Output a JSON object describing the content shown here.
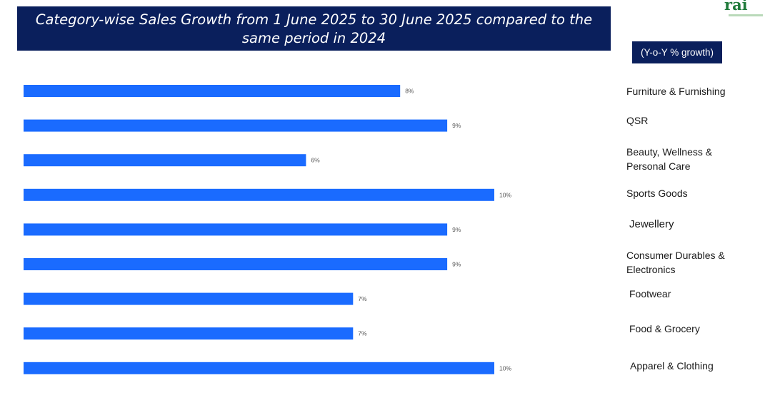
{
  "title": "Category-wise Sales Growth from 1 June 2025 to 30 June 2025 compared to the same period in 2024",
  "unit_label": "(Y-o-Y % growth)",
  "logo_text": "rai",
  "colors": {
    "bar": "#1a6bff",
    "title_bg": "#0a1f5c",
    "logo": "#1f7a3a"
  },
  "chart_data": {
    "type": "bar",
    "orientation": "horizontal",
    "title": "Category-wise Sales Growth from 1 June 2025 to 30 June 2025 compared to the same period in 2024",
    "categories": [
      "Furniture & Furnishing",
      "QSR",
      "Beauty, Wellness & Personal Care",
      "Sports Goods",
      "Jewellery",
      "Consumer Durables & Electronics",
      "Footwear",
      "Food & Grocery",
      "Apparel & Clothing"
    ],
    "values": [
      8,
      9,
      6,
      10,
      9,
      9,
      7,
      7,
      10
    ],
    "value_labels": [
      "8%",
      "9%",
      "6%",
      "10%",
      "9%",
      "9%",
      "7%",
      "7%",
      "10%"
    ],
    "xlim": [
      0,
      10
    ],
    "grid": false,
    "data_labels": true,
    "category_labels_position": "right"
  }
}
